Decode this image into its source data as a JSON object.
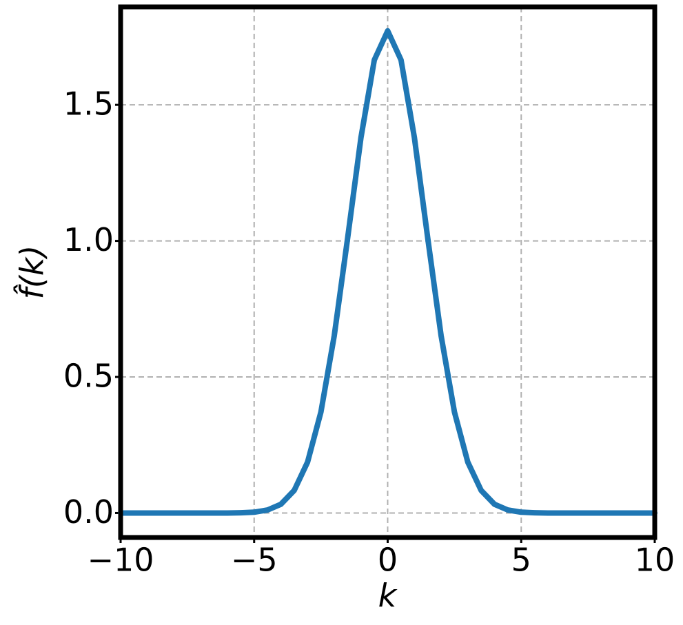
{
  "chart_data": {
    "type": "line",
    "xlabel": "k",
    "ylabel": "f̂(k)",
    "x": [
      -10,
      -9,
      -8,
      -7,
      -6,
      -5.5,
      -5,
      -4.5,
      -4,
      -3.5,
      -3,
      -2.5,
      -2,
      -1.5,
      -1,
      -0.5,
      0,
      0.5,
      1,
      1.5,
      2,
      2.5,
      3,
      3.5,
      4,
      4.5,
      5,
      5.5,
      6,
      7,
      8,
      9,
      10
    ],
    "values": [
      0,
      0,
      0,
      0,
      0,
      0.001,
      0.003,
      0.011,
      0.032,
      0.083,
      0.187,
      0.371,
      0.652,
      1.01,
      1.38,
      1.665,
      1.772,
      1.665,
      1.38,
      1.01,
      0.652,
      0.371,
      0.187,
      0.083,
      0.032,
      0.011,
      0.003,
      0.001,
      0,
      0,
      0,
      0,
      0
    ],
    "color": "#1f77b4",
    "xlim": [
      -10,
      10
    ],
    "xticks": [
      {
        "value": -10,
        "label": "−10"
      },
      {
        "value": -5,
        "label": "−5"
      },
      0,
      5,
      10
    ],
    "ylim": [
      -0.09,
      1.86
    ],
    "yticks": [
      {
        "value": 0,
        "label": "0.0"
      },
      {
        "value": 0.5,
        "label": "0.5"
      },
      {
        "value": 1,
        "label": "1.0"
      },
      {
        "value": 1.5,
        "label": "1.5"
      }
    ],
    "grid": true
  }
}
